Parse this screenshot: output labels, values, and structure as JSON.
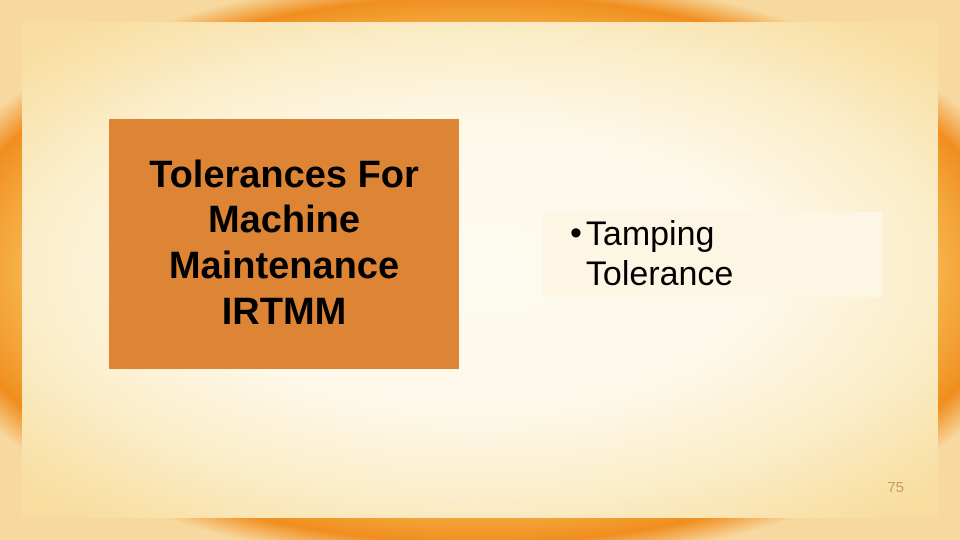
{
  "slide": {
    "background": {
      "outer_gradient_colors": [
        "#fdf9ee",
        "#fdf7e4",
        "#fce8b8",
        "#f9cd7a",
        "#f4aa3f",
        "#f08e1f",
        "#f7d9a0"
      ],
      "inner_gradient_colors": [
        "#fdfaf0",
        "#fdf8e8",
        "#fbeecb",
        "#f9e2ab",
        "#f8dca0"
      ]
    },
    "left_box": {
      "bg_color": "#dd8435",
      "text_color": "#000000",
      "font_size_pt": 29,
      "font_weight": 700,
      "lines": {
        "l1": "Tolerances For",
        "l2": "Machine",
        "l3": "Maintenance",
        "l4": "IRTMM"
      }
    },
    "right_box": {
      "bg_color": "#fdf6e5",
      "text_color": "#000000",
      "font_size_pt": 26,
      "bullet_char": "•",
      "lines": {
        "l1": "Tamping",
        "l2": "Tolerance"
      }
    },
    "page_number": "75",
    "page_number_color": "#c69a5a"
  }
}
